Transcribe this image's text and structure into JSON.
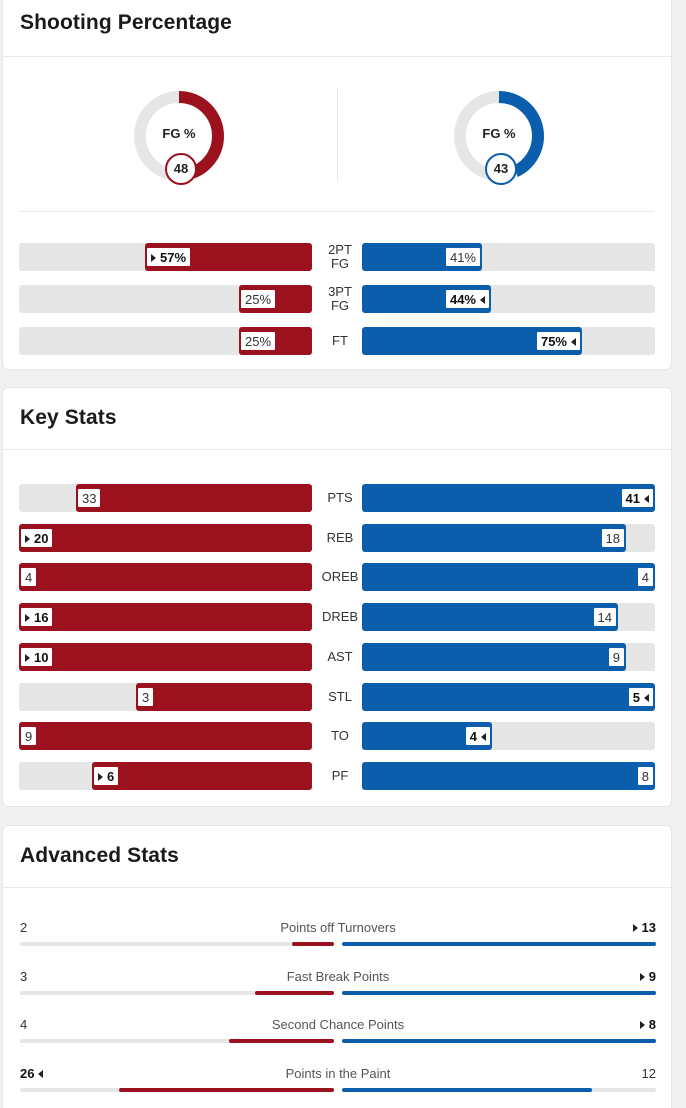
{
  "shooting": {
    "title": "Shooting Percentage",
    "fg_label": "FG %",
    "home_fg": 48,
    "away_fg": 43,
    "rows": [
      {
        "label_top": "2PT",
        "label_bottom": "FG",
        "home": "57%",
        "home_val": 57,
        "home_lead": true,
        "away": "41%",
        "away_val": 41,
        "away_lead": false
      },
      {
        "label_top": "3PT",
        "label_bottom": "FG",
        "home": "25%",
        "home_val": 25,
        "home_lead": false,
        "away": "44%",
        "away_val": 44,
        "away_lead": true
      },
      {
        "label_top": "FT",
        "label_bottom": "",
        "home": "25%",
        "home_val": 25,
        "home_lead": false,
        "away": "75%",
        "away_val": 75,
        "away_lead": true
      }
    ]
  },
  "key_stats": {
    "title": "Key Stats",
    "rows": [
      {
        "label": "PTS",
        "home": "33",
        "home_val": 33,
        "away": "41",
        "away_val": 41,
        "lead": "away",
        "max": 41
      },
      {
        "label": "REB",
        "home": "20",
        "home_val": 20,
        "away": "18",
        "away_val": 18,
        "lead": "home",
        "max": 20
      },
      {
        "label": "OREB",
        "home": "4",
        "home_val": 4,
        "away": "4",
        "away_val": 4,
        "lead": "none",
        "max": 4
      },
      {
        "label": "DREB",
        "home": "16",
        "home_val": 16,
        "away": "14",
        "away_val": 14,
        "lead": "home",
        "max": 16
      },
      {
        "label": "AST",
        "home": "10",
        "home_val": 10,
        "away": "9",
        "away_val": 9,
        "lead": "home",
        "max": 10
      },
      {
        "label": "STL",
        "home": "3",
        "home_val": 3,
        "away": "5",
        "away_val": 5,
        "lead": "away",
        "max": 5
      },
      {
        "label": "TO",
        "home": "9",
        "home_val": 9,
        "away": "4",
        "away_val": 4,
        "lead": "away",
        "max": 9
      },
      {
        "label": "PF",
        "home": "6",
        "home_val": 6,
        "away": "8",
        "away_val": 8,
        "lead": "home",
        "max": 8
      }
    ]
  },
  "advanced": {
    "title": "Advanced Stats",
    "rows": [
      {
        "label": "Points off Turnovers",
        "home": "2",
        "home_val": 2,
        "away": "13",
        "away_val": 13,
        "lead": "away"
      },
      {
        "label": "Fast Break Points",
        "home": "3",
        "home_val": 3,
        "away": "9",
        "away_val": 9,
        "lead": "away"
      },
      {
        "label": "Second Chance Points",
        "home": "4",
        "home_val": 4,
        "away": "8",
        "away_val": 8,
        "lead": "away"
      },
      {
        "label": "Points in the Paint",
        "home": "26",
        "home_val": 26,
        "away": "12",
        "away_val": 12,
        "lead": "home"
      }
    ]
  },
  "colors": {
    "home": "#9b111e",
    "away": "#0a5eab",
    "track": "#e6e6e6"
  }
}
